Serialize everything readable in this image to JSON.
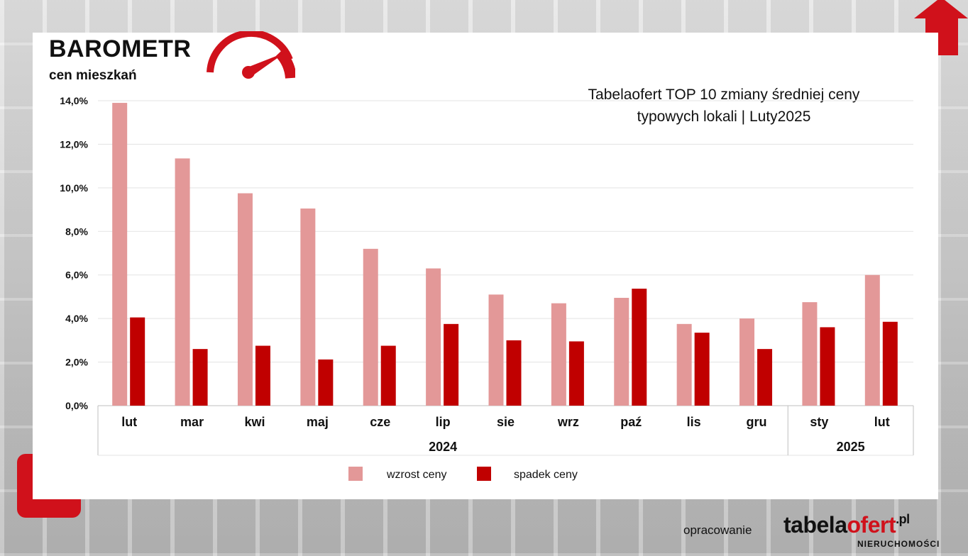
{
  "brand": {
    "title": "BAROMETR",
    "subtitle": "cen mieszkań"
  },
  "colors": {
    "increase": "#e39898",
    "decrease": "#c00000",
    "accent": "#d0111b"
  },
  "chart_data": {
    "type": "bar",
    "title": "Tabelaofert TOP 10 zmiany średniej ceny",
    "subtitle": "typowych lokali  | Luty2025",
    "categories": [
      "lut",
      "mar",
      "kwi",
      "maj",
      "cze",
      "lip",
      "sie",
      "wrz",
      "paź",
      "lis",
      "gru",
      "sty",
      "lut"
    ],
    "category_groups": [
      {
        "label": "2024",
        "from": 0,
        "to": 10
      },
      {
        "label": "2025",
        "from": 11,
        "to": 12
      }
    ],
    "series": [
      {
        "name": "wzrost ceny",
        "values": [
          13.9,
          11.35,
          9.75,
          9.05,
          7.2,
          6.3,
          5.1,
          4.7,
          4.95,
          3.75,
          4.0,
          4.75,
          6.0
        ]
      },
      {
        "name": "spadek ceny",
        "values": [
          4.05,
          2.6,
          2.75,
          2.12,
          2.75,
          3.75,
          3.0,
          2.95,
          5.37,
          3.35,
          2.6,
          3.6,
          3.85
        ]
      }
    ],
    "ylim": [
      0,
      14
    ],
    "yticks": [
      "0,0%",
      "2,0%",
      "4,0%",
      "6,0%",
      "8,0%",
      "10,0%",
      "12,0%",
      "14,0%"
    ],
    "grid": true,
    "legend_position": "bottom"
  },
  "footer": {
    "label": "opracowanie",
    "logo_main": "tabela",
    "logo_accent": "ofert",
    "logo_tld": ".pl",
    "logo_sub": "NIERUCHOMOŚCI"
  }
}
